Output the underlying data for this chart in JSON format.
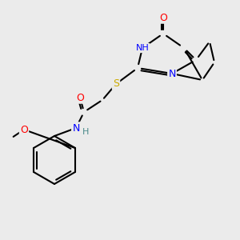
{
  "bg_color": "#ebebeb",
  "bond_color": "#000000",
  "bond_width": 1.5,
  "atom_colors": {
    "O": "#ff0000",
    "N": "#0000ff",
    "S": "#ccaa00",
    "H": "#4a8a8a",
    "C": "#000000"
  },
  "font_size": 9,
  "font_size_small": 8
}
